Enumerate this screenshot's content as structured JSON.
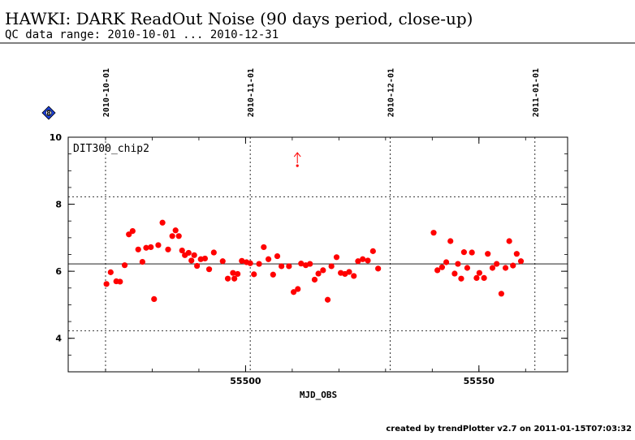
{
  "header": {
    "title": "HAWKI: DARK ReadOut Noise (90 days period, close-up)",
    "subtitle": "QC data range: 2010-10-01 ... 2010-12-31"
  },
  "footer": {
    "credit": "created by trendPlotter v2.7 on 2011-01-15T07:03:32"
  },
  "badge": {
    "label": "8",
    "color": "#1c3fd8"
  },
  "chart_data": {
    "type": "scatter",
    "panel_label": "DIT300_chip2",
    "xlabel": "MJD_OBS",
    "ylabel": "",
    "xlim": [
      55462,
      55569
    ],
    "ylim": [
      3,
      10
    ],
    "x_ticks": [
      55500,
      55550
    ],
    "x_tick_labels": [
      "55500",
      "55550"
    ],
    "y_ticks": [
      4,
      6,
      8,
      10
    ],
    "y_tick_labels": [
      "4",
      "6",
      "8",
      "10"
    ],
    "date_markers": [
      {
        "label": "2010-10-01",
        "mjd": 55470
      },
      {
        "label": "2010-11-01",
        "mjd": 55501
      },
      {
        "label": "2010-12-01",
        "mjd": 55531
      },
      {
        "label": "2011-01-01",
        "mjd": 55562
      }
    ],
    "reference_line": 6.22,
    "threshold_lines": [
      8.22,
      4.22
    ],
    "point_color": "#ff0000",
    "outlier": {
      "x": 55511.1,
      "y": 9.15,
      "direction": "up"
    },
    "series": [
      {
        "x": [
          55470.2,
          55471.1,
          55472.3,
          55473.1,
          55474.1,
          55475.0,
          55475.8,
          55477.0,
          55477.9,
          55478.7,
          55479.7,
          55480.4,
          55481.3,
          55482.2,
          55483.4,
          55484.3,
          55485.0,
          55485.7,
          55486.4,
          55487.0,
          55487.8,
          55488.4,
          55489.0,
          55489.6,
          55490.4,
          55491.3,
          55492.2,
          55493.2,
          55495.1,
          55496.2,
          55497.3,
          55497.6,
          55498.3,
          55499.2,
          55500.2,
          55501.0,
          55501.8,
          55502.9,
          55503.9,
          55504.9,
          55505.9,
          55506.8,
          55507.7,
          55509.3,
          55510.3,
          55511.2,
          55511.9,
          55512.9,
          55513.8,
          55514.8,
          55515.6,
          55516.6,
          55517.6,
          55518.4,
          55519.5,
          55520.4,
          55521.3,
          55522.2,
          55523.2,
          55524.1,
          55525.1,
          55526.2,
          55527.3,
          55528.4,
          55540.3,
          55541.1,
          55542.1,
          55543.0,
          55543.9,
          55544.8,
          55545.5,
          55546.2,
          55546.8,
          55547.5,
          55548.5,
          55549.5,
          55550.1,
          55551.1,
          55551.9,
          55552.9,
          55553.8,
          55554.8,
          55555.7,
          55556.5,
          55557.3,
          55558.1,
          55559.0
        ],
        "y": [
          5.62,
          5.97,
          5.7,
          5.69,
          6.18,
          7.1,
          7.2,
          6.65,
          6.28,
          6.7,
          6.72,
          5.17,
          6.78,
          7.45,
          6.65,
          7.05,
          7.22,
          7.05,
          6.62,
          6.48,
          6.55,
          6.32,
          6.48,
          6.16,
          6.36,
          6.38,
          6.06,
          6.56,
          6.3,
          5.78,
          5.95,
          5.78,
          5.92,
          6.31,
          6.27,
          6.24,
          5.91,
          6.22,
          6.72,
          6.36,
          5.9,
          6.45,
          6.15,
          6.15,
          5.38,
          5.47,
          6.23,
          6.18,
          6.22,
          5.75,
          5.93,
          6.03,
          5.15,
          6.15,
          6.42,
          5.95,
          5.92,
          5.98,
          5.86,
          6.3,
          6.36,
          6.32,
          6.6,
          6.08,
          7.15,
          6.03,
          6.12,
          6.27,
          6.9,
          5.93,
          6.22,
          5.78,
          6.57,
          6.1,
          6.56,
          5.8,
          5.95,
          5.8,
          6.52,
          6.1,
          6.22,
          5.33,
          6.1,
          6.9,
          6.17,
          6.52,
          6.3
        ]
      }
    ]
  }
}
